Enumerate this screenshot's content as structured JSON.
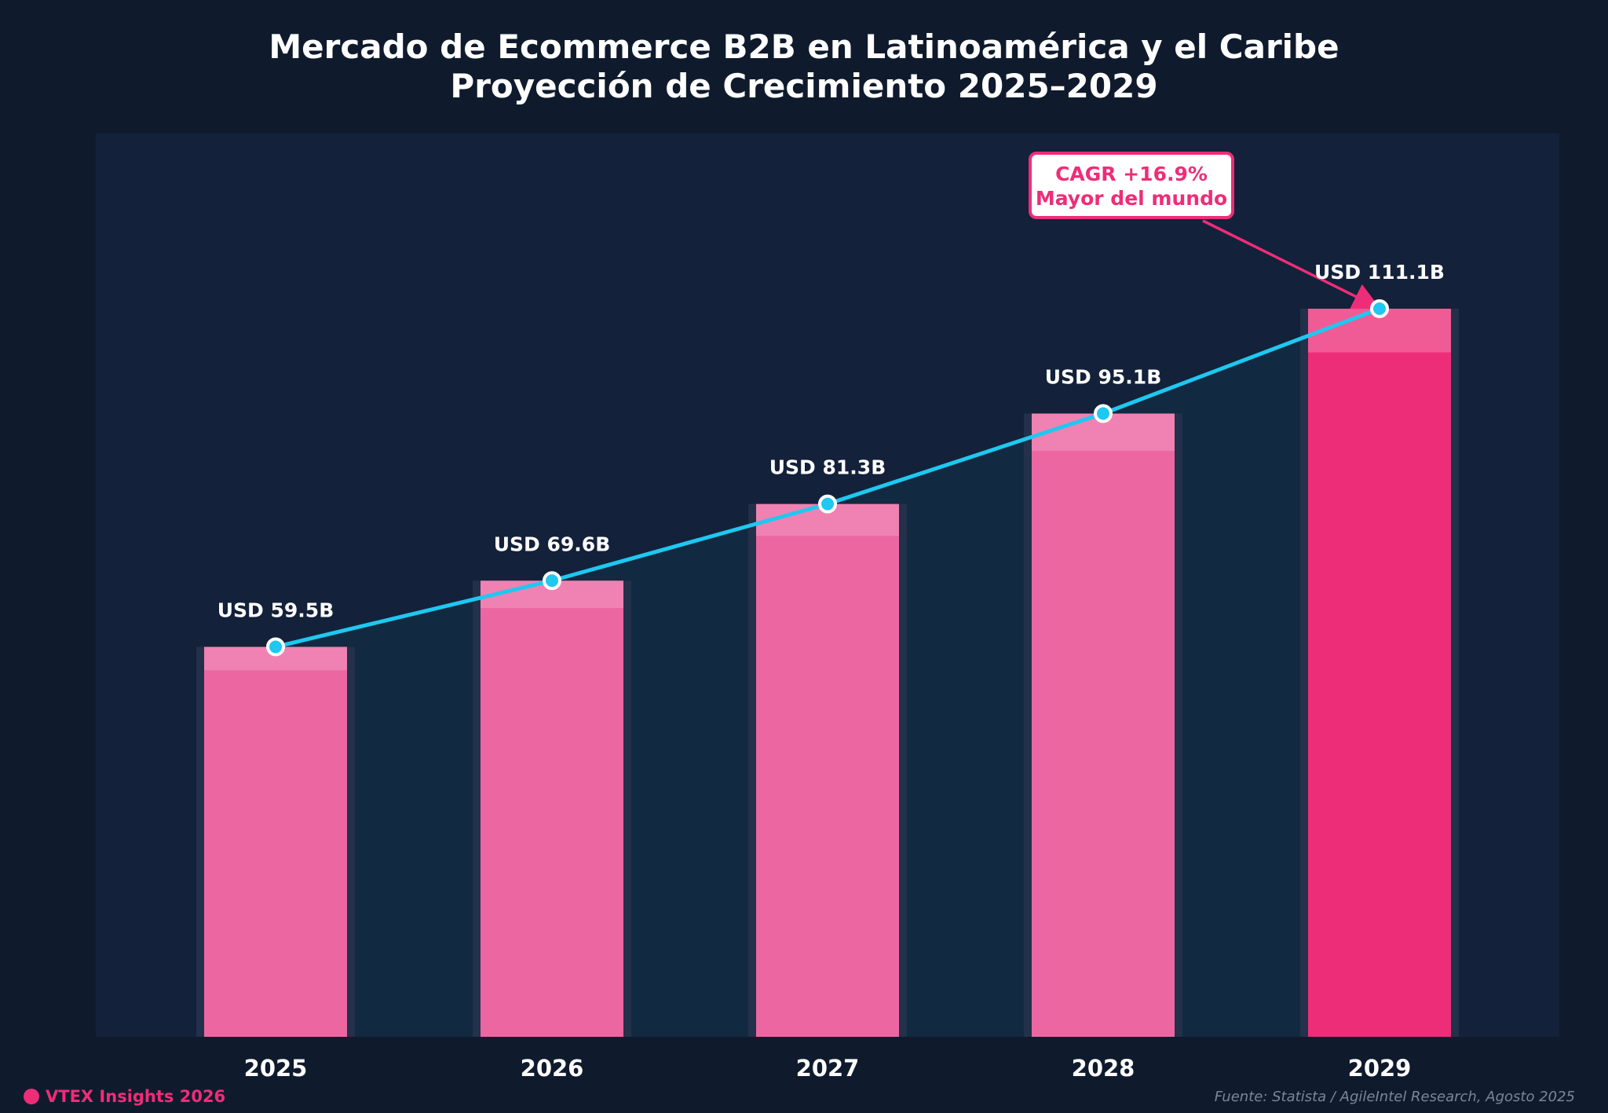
{
  "chart_data": {
    "type": "bar",
    "title": "Mercado de Ecommerce B2B en Latinoamérica y el Caribe",
    "subtitle": "Proyección de Crecimiento 2025–2029",
    "categories": [
      "2025",
      "2026",
      "2027",
      "2028",
      "2029"
    ],
    "values": [
      59.5,
      69.6,
      81.3,
      95.1,
      111.1
    ],
    "value_labels": [
      "USD 59.5B",
      "USD 69.6B",
      "USD 81.3B",
      "USD 95.1B",
      "USD 111.1B"
    ],
    "overlay": "line",
    "ylim": [
      0,
      111.1
    ],
    "grid": false,
    "highlight_category": "2029",
    "annotation": {
      "line1": "CAGR +16.9%",
      "line2": "Mayor del mundo",
      "target": "2029"
    }
  },
  "colors": {
    "background": "#0f1b2d",
    "plot_background": "#13213a",
    "bar": "#ec67a2",
    "bar_highlight": "#ee2d78",
    "line": "#1ec8f0",
    "accent": "#ee2d78"
  },
  "footer": {
    "brand": "VTEX Insights 2026",
    "source": "Fuente: Statista / AgileIntel Research, Agosto 2025"
  }
}
